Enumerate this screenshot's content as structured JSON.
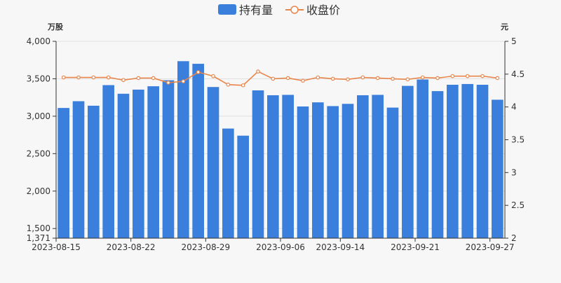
{
  "chart_data": {
    "type": "bar",
    "legend": {
      "placement": "top-center",
      "items": [
        {
          "label": "持有量",
          "kind": "bar",
          "color": "#3b7fdd"
        },
        {
          "label": "收盘价",
          "kind": "line",
          "color": "#e8854a"
        }
      ]
    },
    "left_axis": {
      "unit": "万股",
      "ylim": [
        1371,
        4000
      ],
      "ticks": [
        "1,371",
        "1,500",
        "2,000",
        "2,500",
        "3,000",
        "3,500",
        "4,000"
      ],
      "tick_values": [
        1371,
        1500,
        2000,
        2500,
        3000,
        3500,
        4000
      ]
    },
    "right_axis": {
      "unit": "元",
      "ylim": [
        2,
        5
      ],
      "ticks": [
        "2",
        "2.5",
        "3",
        "3.5",
        "4",
        "4.5",
        "5"
      ],
      "tick_values": [
        2,
        2.5,
        3,
        3.5,
        4,
        4.5,
        5
      ]
    },
    "x_tick_labels": [
      {
        "index": 0,
        "label": "2023-08-15"
      },
      {
        "index": 5,
        "label": "2023-08-22"
      },
      {
        "index": 10,
        "label": "2023-08-29"
      },
      {
        "index": 15,
        "label": "2023-09-06"
      },
      {
        "index": 19,
        "label": "2023-09-14"
      },
      {
        "index": 24,
        "label": "2023-09-21"
      },
      {
        "index": 29,
        "label": "2023-09-27"
      }
    ],
    "grid": true,
    "series": [
      {
        "name": "持有量",
        "type": "bar",
        "axis": "left",
        "values": [
          3110,
          3200,
          3140,
          3415,
          3300,
          3355,
          3400,
          3480,
          3735,
          3700,
          3390,
          2835,
          2740,
          3345,
          3280,
          3285,
          3130,
          3185,
          3135,
          3165,
          3280,
          3285,
          3115,
          3405,
          3490,
          3335,
          3420,
          3430,
          3420,
          3220
        ]
      },
      {
        "name": "收盘价",
        "type": "line",
        "axis": "right",
        "values": [
          4.45,
          4.45,
          4.45,
          4.45,
          4.41,
          4.44,
          4.44,
          4.37,
          4.39,
          4.53,
          4.47,
          4.34,
          4.33,
          4.54,
          4.43,
          4.44,
          4.4,
          4.45,
          4.43,
          4.42,
          4.45,
          4.44,
          4.43,
          4.42,
          4.45,
          4.44,
          4.47,
          4.47,
          4.47,
          4.44
        ]
      }
    ]
  }
}
